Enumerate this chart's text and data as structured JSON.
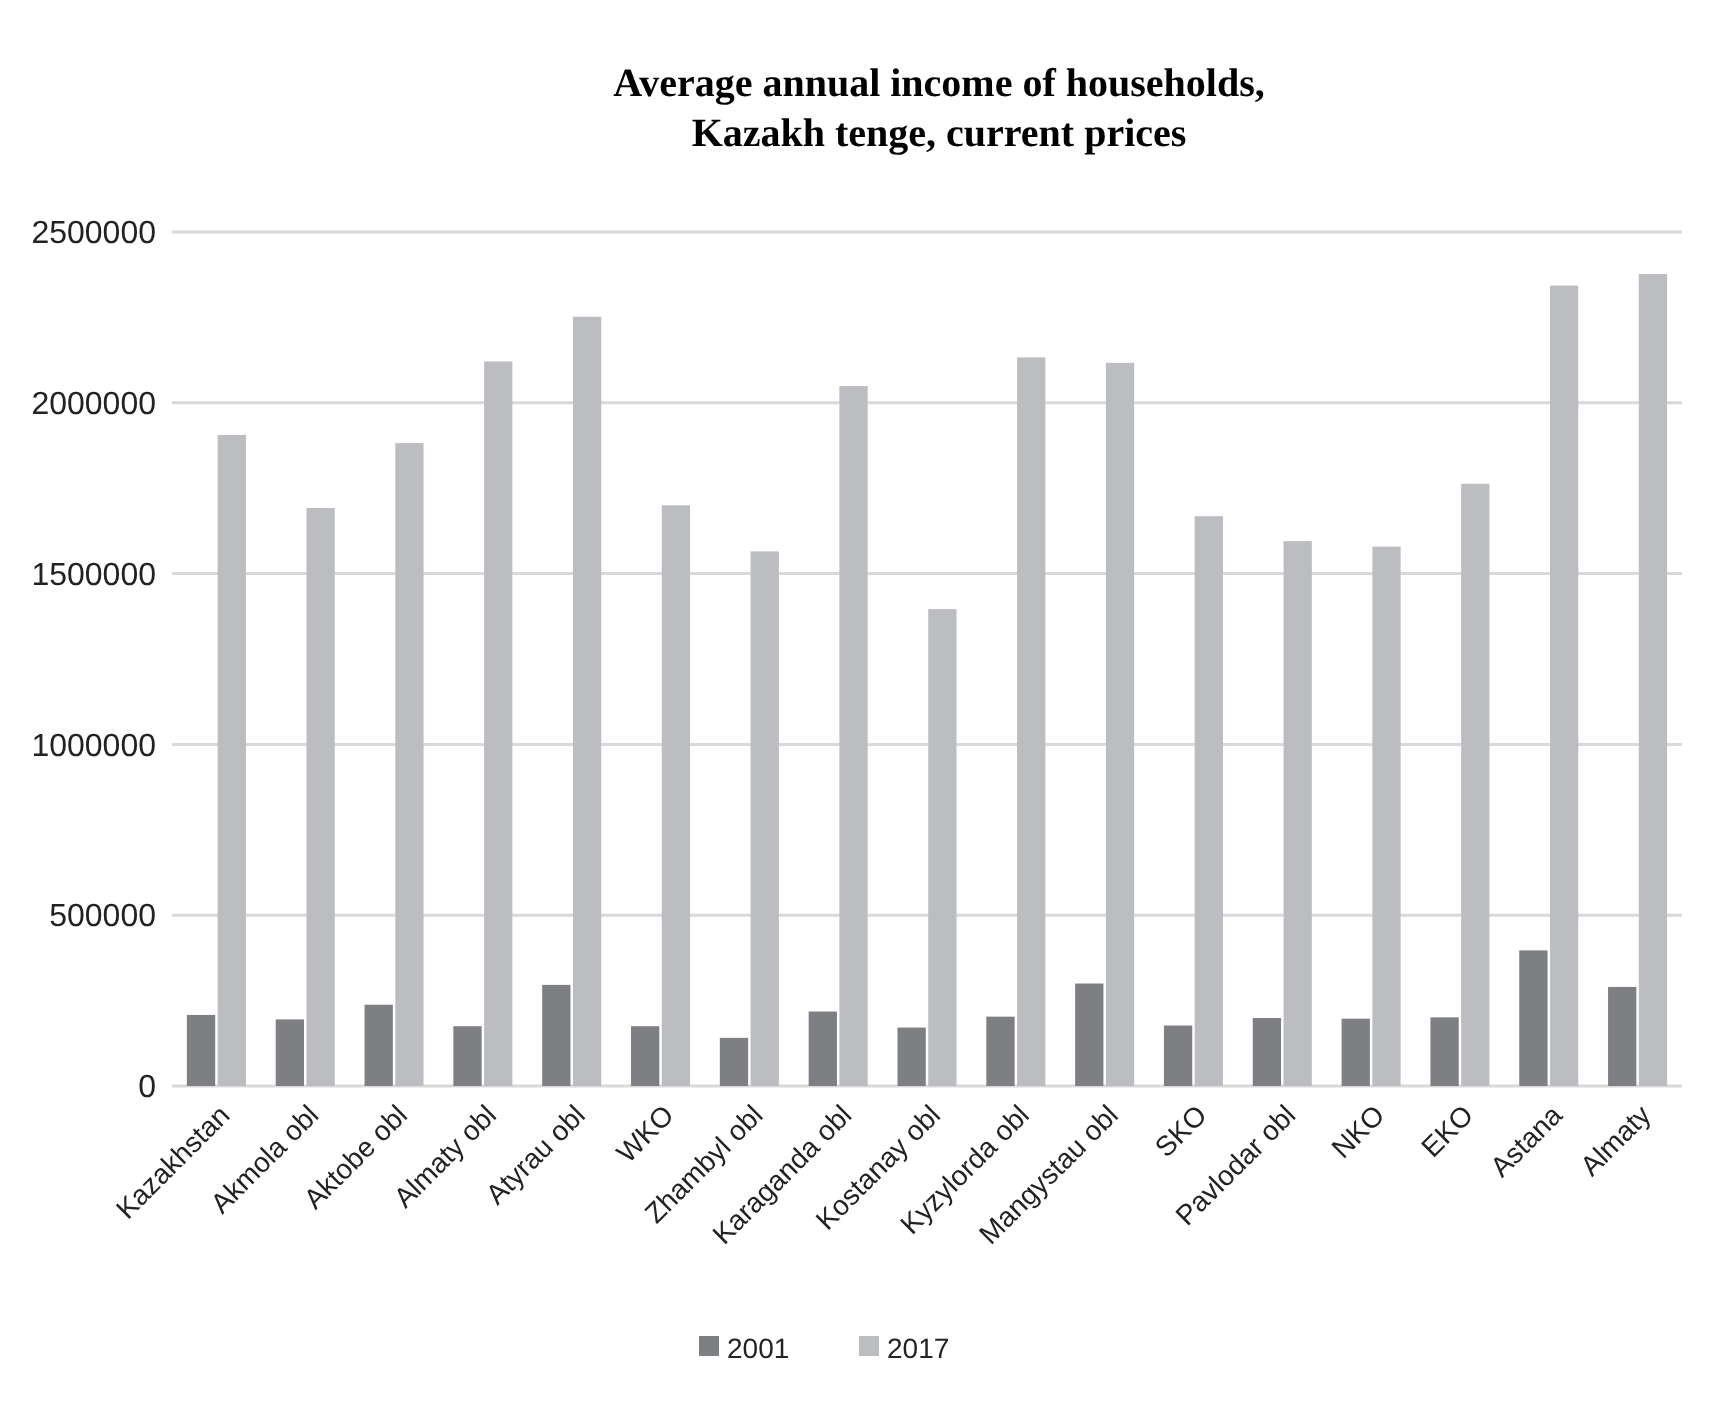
{
  "chart_data": {
    "type": "bar",
    "title": "Average annual income of households,\nKazakh tenge, current prices",
    "categories": [
      "Kazakhstan",
      "Akmola obl",
      "Aktobe obl",
      "Almaty obl",
      "Atyrau obl",
      "WKO",
      "Zhambyl obl",
      "Karaganda obl",
      "Kostanay obl",
      "Kyzylorda obl",
      "Mangystau obl",
      "SKO",
      "Pavlodar obl",
      "NKO",
      "EKO",
      "Astana",
      "Almaty"
    ],
    "series": [
      {
        "name": "2001",
        "color": "#7e7f83",
        "values": [
          208000,
          195000,
          238000,
          175000,
          296000,
          175000,
          141000,
          218000,
          171000,
          203000,
          300000,
          177000,
          199000,
          197000,
          201000,
          397000,
          290000
        ]
      },
      {
        "name": "2017",
        "color": "#bcbdc1",
        "values": [
          1906000,
          1692000,
          1882000,
          2121000,
          2252000,
          1700000,
          1565000,
          2049000,
          1396000,
          2133000,
          2117000,
          1668000,
          1595000,
          1579000,
          1763000,
          2343000,
          2377000
        ]
      }
    ],
    "ylim": [
      0,
      2500000
    ],
    "yticks": [
      0,
      500000,
      1000000,
      1500000,
      2000000,
      2500000
    ],
    "grid": "y",
    "legend": "bottom"
  }
}
